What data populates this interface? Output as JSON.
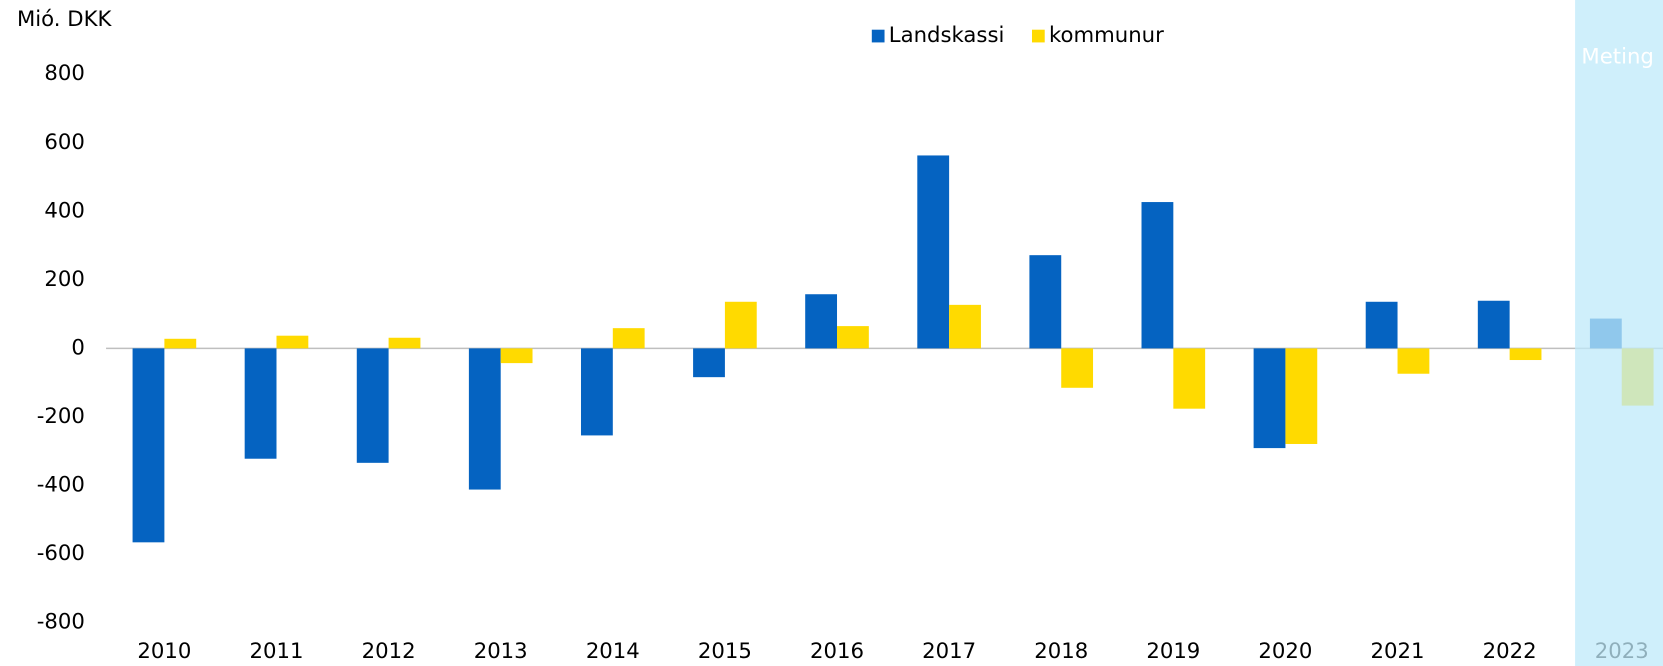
{
  "chart_data": {
    "type": "bar",
    "y_label": "Mió. DKK",
    "annotation": "Meting",
    "categories": [
      "2010",
      "2011",
      "2012",
      "2013",
      "2014",
      "2015",
      "2016",
      "2017",
      "2018",
      "2019",
      "2020",
      "2021",
      "2022",
      "2023"
    ],
    "series": [
      {
        "name": "Landskassi",
        "color": "#0563c1",
        "values": [
          -566,
          -322,
          -334,
          -412,
          -254,
          -84,
          158,
          563,
          272,
          427,
          -291,
          136,
          139,
          87
        ]
      },
      {
        "name": "kommunur",
        "color": "#ffda00",
        "values": [
          28,
          37,
          31,
          -43,
          59,
          136,
          65,
          127,
          -115,
          -176,
          -279,
          -74,
          -34,
          -167
        ]
      }
    ],
    "ylim": [
      -800,
      800
    ],
    "yticks": [
      -800,
      -600,
      -400,
      -200,
      0,
      200,
      400,
      600,
      800
    ],
    "grid": false,
    "legend": "top"
  }
}
